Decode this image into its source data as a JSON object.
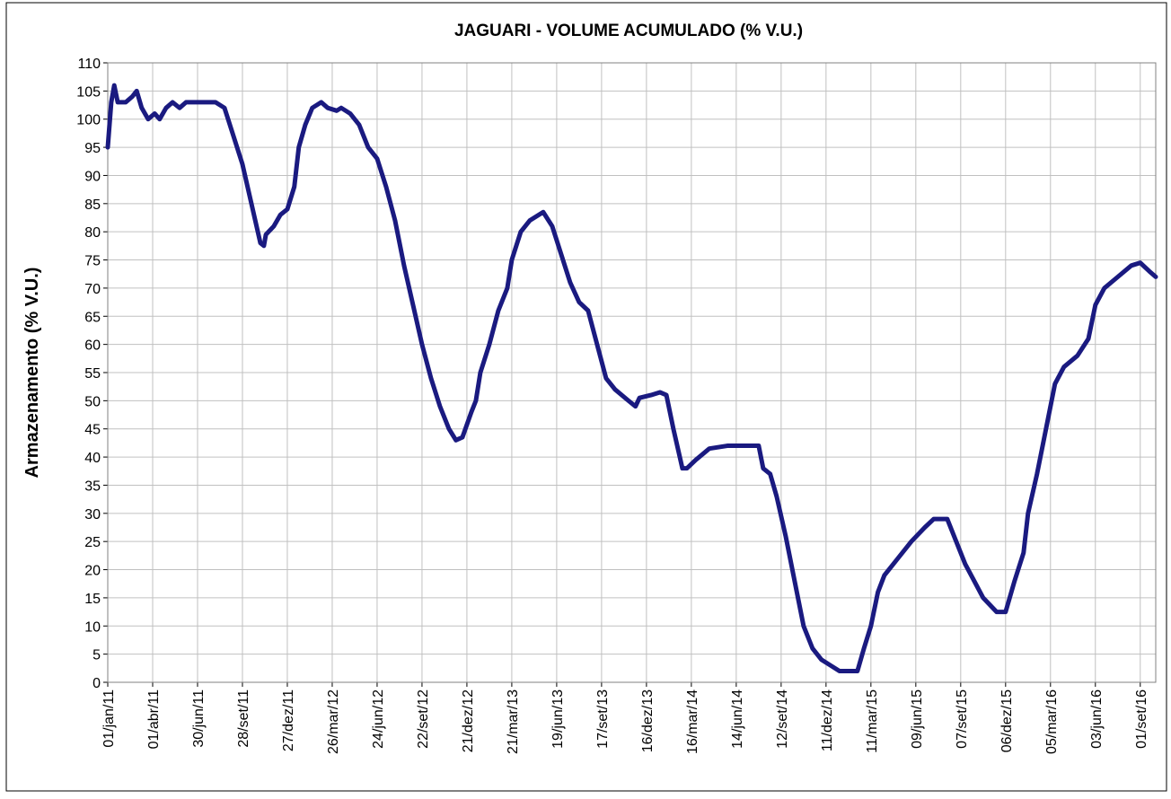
{
  "chart_data": {
    "type": "line",
    "title": "JAGUARI - VOLUME ACUMULADO (% V.U.)",
    "y_label": "Armazenamento (% V.U.)",
    "grid": true,
    "xlim": [
      "2011-01-01",
      "2016-10-02"
    ],
    "ylim": [
      0,
      110
    ],
    "yticks": [
      0,
      5,
      10,
      15,
      20,
      25,
      30,
      35,
      40,
      45,
      50,
      55,
      60,
      65,
      70,
      75,
      80,
      85,
      90,
      95,
      100,
      105,
      110
    ],
    "xticks": [
      {
        "value": "2011-01-01",
        "label": "01/jan/11"
      },
      {
        "value": "2011-04-01",
        "label": "01/abr/11"
      },
      {
        "value": "2011-06-30",
        "label": "30/jun/11"
      },
      {
        "value": "2011-09-28",
        "label": "28/set/11"
      },
      {
        "value": "2011-12-27",
        "label": "27/dez/11"
      },
      {
        "value": "2012-03-26",
        "label": "26/mar/12"
      },
      {
        "value": "2012-06-24",
        "label": "24/jun/12"
      },
      {
        "value": "2012-09-22",
        "label": "22/set/12"
      },
      {
        "value": "2012-12-21",
        "label": "21/dez/12"
      },
      {
        "value": "2013-03-21",
        "label": "21/mar/13"
      },
      {
        "value": "2013-06-19",
        "label": "19/jun/13"
      },
      {
        "value": "2013-09-17",
        "label": "17/set/13"
      },
      {
        "value": "2013-12-16",
        "label": "16/dez/13"
      },
      {
        "value": "2014-03-16",
        "label": "16/mar/14"
      },
      {
        "value": "2014-06-14",
        "label": "14/jun/14"
      },
      {
        "value": "2014-09-12",
        "label": "12/set/14"
      },
      {
        "value": "2014-12-11",
        "label": "11/dez/14"
      },
      {
        "value": "2015-03-11",
        "label": "11/mar/15"
      },
      {
        "value": "2015-06-09",
        "label": "09/jun/15"
      },
      {
        "value": "2015-09-07",
        "label": "07/set/15"
      },
      {
        "value": "2015-12-06",
        "label": "06/dez/15"
      },
      {
        "value": "2016-03-05",
        "label": "05/mar/16"
      },
      {
        "value": "2016-06-03",
        "label": "03/jun/16"
      },
      {
        "value": "2016-09-01",
        "label": "01/set/16"
      }
    ],
    "x": [
      "2011-01-01",
      "2011-01-08",
      "2011-01-14",
      "2011-01-21",
      "2011-02-06",
      "2011-02-19",
      "2011-02-28",
      "2011-03-10",
      "2011-03-23",
      "2011-04-05",
      "2011-04-15",
      "2011-04-28",
      "2011-05-11",
      "2011-05-25",
      "2011-06-07",
      "2011-06-30",
      "2011-08-05",
      "2011-08-23",
      "2011-09-10",
      "2011-09-28",
      "2011-10-16",
      "2011-11-03",
      "2011-11-10",
      "2011-11-14",
      "2011-11-30",
      "2011-12-13",
      "2011-12-27",
      "2012-01-10",
      "2012-01-19",
      "2012-02-01",
      "2012-02-15",
      "2012-03-04",
      "2012-03-17",
      "2012-04-04",
      "2012-04-13",
      "2012-05-01",
      "2012-05-19",
      "2012-06-06",
      "2012-06-24",
      "2012-07-12",
      "2012-07-30",
      "2012-08-17",
      "2012-09-04",
      "2012-09-22",
      "2012-10-10",
      "2012-10-28",
      "2012-11-15",
      "2012-11-29",
      "2012-12-12",
      "2012-12-30",
      "2013-01-08",
      "2013-01-17",
      "2013-02-04",
      "2013-02-22",
      "2013-03-12",
      "2013-03-21",
      "2013-04-08",
      "2013-04-26",
      "2013-05-23",
      "2013-06-10",
      "2013-06-28",
      "2013-07-16",
      "2013-08-03",
      "2013-08-21",
      "2013-09-08",
      "2013-09-26",
      "2013-10-14",
      "2013-11-10",
      "2013-11-24",
      "2013-12-02",
      "2013-12-25",
      "2014-01-12",
      "2014-01-25",
      "2014-02-08",
      "2014-02-26",
      "2014-03-07",
      "2014-03-25",
      "2014-04-21",
      "2014-05-27",
      "2014-07-29",
      "2014-08-07",
      "2014-08-21",
      "2014-09-03",
      "2014-09-21",
      "2014-10-09",
      "2014-10-27",
      "2014-11-14",
      "2014-12-02",
      "2014-12-20",
      "2015-01-07",
      "2015-02-12",
      "2015-02-25",
      "2015-03-11",
      "2015-03-25",
      "2015-04-07",
      "2015-05-04",
      "2015-05-31",
      "2015-06-27",
      "2015-07-15",
      "2015-08-11",
      "2015-08-29",
      "2015-09-16",
      "2015-10-04",
      "2015-10-22",
      "2015-11-18",
      "2015-12-06",
      "2015-12-24",
      "2016-01-11",
      "2016-01-20",
      "2016-02-07",
      "2016-02-25",
      "2016-03-14",
      "2016-04-01",
      "2016-04-28",
      "2016-05-20",
      "2016-06-03",
      "2016-06-21",
      "2016-07-18",
      "2016-08-14",
      "2016-09-01",
      "2016-09-19",
      "2016-10-02"
    ],
    "series": [
      {
        "color": "#1a1a80",
        "values": [
          95,
          103,
          106,
          103,
          103,
          104,
          105,
          102,
          100,
          101,
          100,
          102,
          103,
          102,
          103,
          103,
          103,
          102,
          97,
          92,
          85,
          78,
          77.5,
          79.5,
          81,
          83,
          84,
          88,
          95,
          99,
          102,
          103,
          102,
          101.5,
          102,
          101,
          99,
          95,
          93,
          88,
          82,
          74,
          67,
          60,
          54,
          49,
          45,
          43,
          43.5,
          48,
          50,
          55,
          60,
          66,
          70,
          75,
          80,
          82,
          83.5,
          81,
          76,
          71,
          67.5,
          66,
          60,
          54,
          52,
          50,
          49,
          50.5,
          51,
          51.5,
          51,
          45,
          38,
          38,
          39.5,
          41.5,
          42,
          42,
          38,
          37,
          33,
          26,
          18,
          10,
          6,
          4,
          3,
          2,
          2,
          6,
          10,
          16,
          19,
          22,
          25,
          27.5,
          29,
          29,
          25,
          21,
          18,
          15,
          12.5,
          12.5,
          18,
          23,
          30,
          37,
          45,
          53,
          56,
          58,
          61,
          67,
          70,
          72,
          74,
          74.5,
          73,
          72
        ]
      }
    ]
  }
}
